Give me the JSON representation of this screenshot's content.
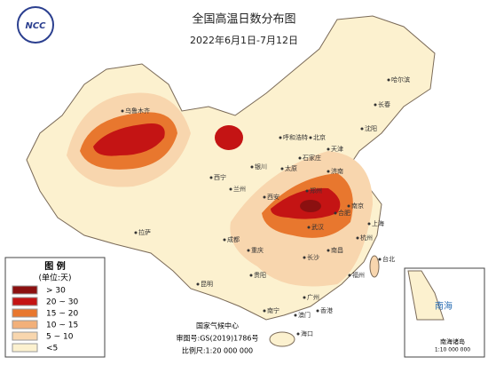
{
  "header": {
    "logo": "NCC",
    "title": "全国高温日数分布图",
    "subtitle": "2022年6月1日-7月12日"
  },
  "legend": {
    "title": "图 例",
    "unit": "(单位:天)",
    "items": [
      {
        "label": "> 30",
        "color": "#8b1010"
      },
      {
        "label": "20 ~ 30",
        "color": "#c41414"
      },
      {
        "label": "15 ~ 20",
        "color": "#e8772e"
      },
      {
        "label": "10 ~ 15",
        "color": "#f2b07a"
      },
      {
        "label": "5 ~ 10",
        "color": "#f8d6ae"
      },
      {
        "label": "<5",
        "color": "#fcf1cf"
      }
    ]
  },
  "cities": [
    "乌鲁木齐",
    "拉萨",
    "西宁",
    "兰州",
    "银川",
    "呼和浩特",
    "北京",
    "天津",
    "石家庄",
    "太原",
    "济南",
    "郑州",
    "西安",
    "成都",
    "重庆",
    "武汉",
    "合肥",
    "南京",
    "上海",
    "杭州",
    "长沙",
    "南昌",
    "福州",
    "台北",
    "贵阳",
    "昆明",
    "南宁",
    "广州",
    "香港",
    "澳门",
    "海口",
    "哈尔滨",
    "长春",
    "沈阳"
  ],
  "inset": {
    "label": "南海",
    "caption": "南海诸岛",
    "scale": "1:10 000 000"
  },
  "footer": {
    "org": "国家气候中心",
    "approval": "审图号:GS(2019)1786号",
    "scale": "比例尺:1:20 000 000"
  }
}
